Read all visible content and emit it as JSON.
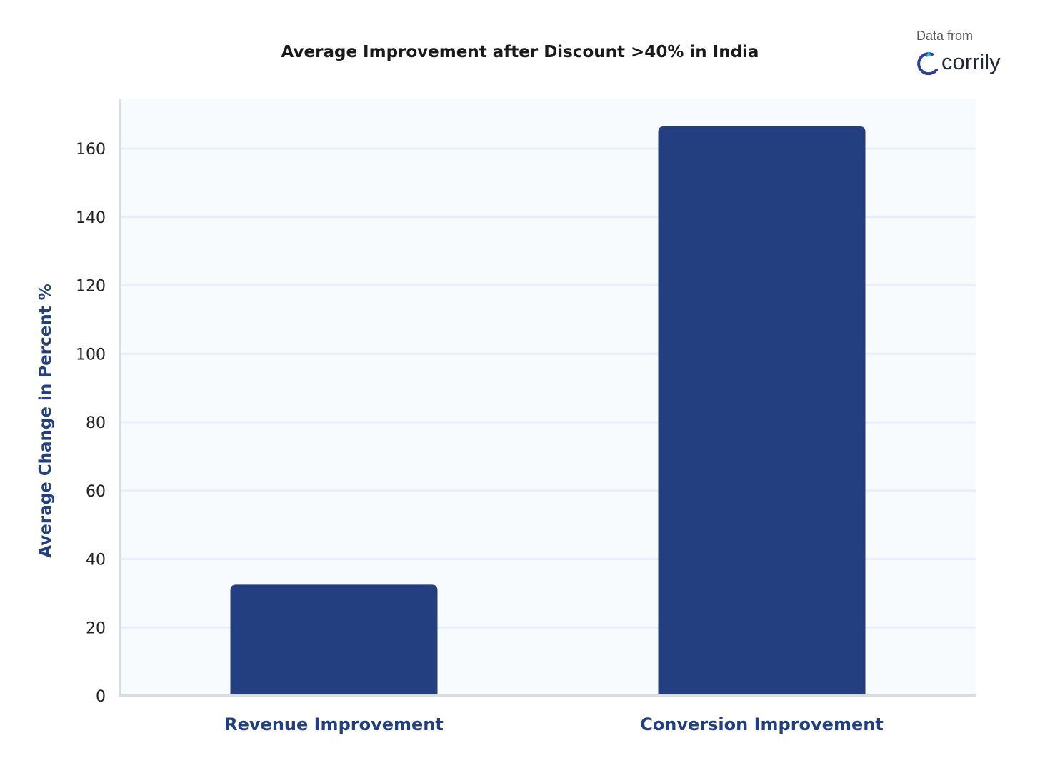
{
  "source": {
    "caption": "Data from",
    "brand": "corrily",
    "logo_icon": "corrily-logo-icon",
    "logo_colors": [
      "#2fb3c9",
      "#2d3e9c"
    ]
  },
  "chart_data": {
    "type": "bar",
    "title": "Average Improvement after Discount >40% in India",
    "xlabel": "",
    "ylabel": "Average Change in Percent %",
    "categories": [
      "Revenue Improvement",
      "Conversion Improvement"
    ],
    "values": [
      32.5,
      166.5
    ],
    "ylim": [
      0,
      172
    ],
    "yticks": [
      0,
      20,
      40,
      60,
      80,
      100,
      120,
      140,
      160
    ],
    "grid": true,
    "legend": "none",
    "colors": {
      "bar": "#233f80",
      "plot_background": "#f8fbfd",
      "gridline": "#e6effb",
      "axis": "#d9dce1"
    }
  }
}
